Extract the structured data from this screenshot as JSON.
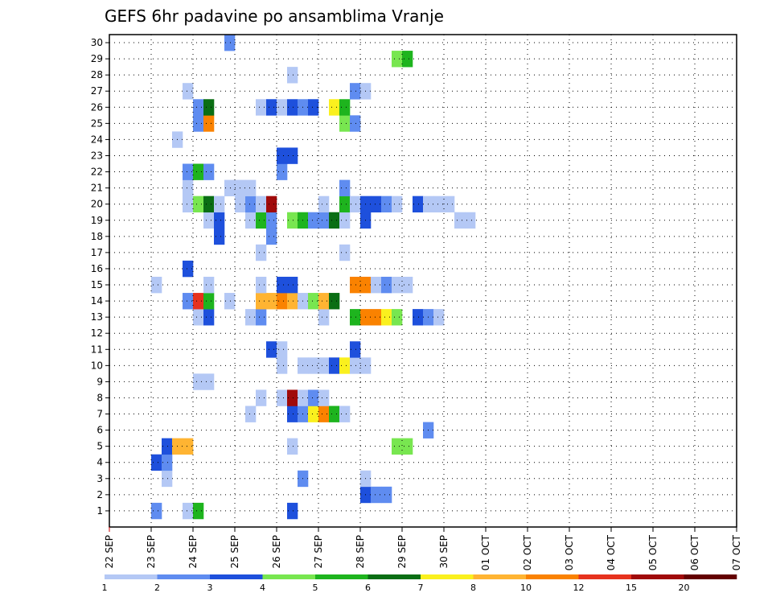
{
  "chart_data": {
    "type": "heatmap",
    "title": "GEFS 6hr padavine po ansamblima Vranje",
    "xlabel": "",
    "ylabel": "",
    "x_tick_labels": [
      "22 SEP",
      "23 SEP",
      "24 SEP",
      "25 SEP",
      "26 SEP",
      "27 SEP",
      "28 SEP",
      "29 SEP",
      "30 SEP",
      "01 OCT",
      "02 OCT",
      "03 OCT",
      "04 OCT",
      "05 OCT",
      "06 OCT",
      "07 OCT"
    ],
    "y_tick_labels": [
      "1",
      "2",
      "3",
      "4",
      "5",
      "6",
      "7",
      "8",
      "9",
      "10",
      "11",
      "12",
      "13",
      "14",
      "15",
      "16",
      "17",
      "18",
      "19",
      "20",
      "21",
      "22",
      "23",
      "24",
      "25",
      "26",
      "27",
      "28",
      "29",
      "30"
    ],
    "time_step_hours": 6,
    "grid": true,
    "legend_position": "bottom",
    "colorbar": {
      "labels": [
        "1",
        "2",
        "3",
        "4",
        "5",
        "6",
        "7",
        "8",
        "10",
        "12",
        "15",
        "20"
      ],
      "colors": [
        "#b4c8f5",
        "#5f8cf0",
        "#1e50dc",
        "#78e650",
        "#1eb41e",
        "#0a6e14",
        "#faf01e",
        "#ffb432",
        "#fa8200",
        "#e6321e",
        "#a00a0a",
        "#640000"
      ]
    },
    "cells": [
      [
        1,
        4,
        2
      ],
      [
        1,
        7,
        1
      ],
      [
        1,
        8,
        5
      ],
      [
        1,
        17,
        3
      ],
      [
        2,
        24,
        3
      ],
      [
        2,
        25,
        2
      ],
      [
        2,
        26,
        2
      ],
      [
        3,
        5,
        1
      ],
      [
        3,
        18,
        2
      ],
      [
        3,
        24,
        1
      ],
      [
        4,
        4,
        3
      ],
      [
        4,
        5,
        2
      ],
      [
        5,
        5,
        3
      ],
      [
        5,
        6,
        8
      ],
      [
        5,
        7,
        8
      ],
      [
        5,
        17,
        1
      ],
      [
        5,
        27,
        4
      ],
      [
        5,
        28,
        4
      ],
      [
        6,
        30,
        2
      ],
      [
        7,
        13,
        1
      ],
      [
        7,
        17,
        3
      ],
      [
        7,
        18,
        2
      ],
      [
        7,
        19,
        7
      ],
      [
        7,
        20,
        9
      ],
      [
        7,
        21,
        5
      ],
      [
        7,
        22,
        1
      ],
      [
        8,
        14,
        1
      ],
      [
        8,
        16,
        1
      ],
      [
        8,
        17,
        11
      ],
      [
        8,
        18,
        1
      ],
      [
        8,
        19,
        2
      ],
      [
        8,
        20,
        1
      ],
      [
        9,
        8,
        1
      ],
      [
        9,
        9,
        1
      ],
      [
        10,
        16,
        1
      ],
      [
        10,
        18,
        1
      ],
      [
        10,
        19,
        1
      ],
      [
        10,
        20,
        1
      ],
      [
        10,
        21,
        3
      ],
      [
        10,
        22,
        7
      ],
      [
        10,
        23,
        1
      ],
      [
        10,
        24,
        1
      ],
      [
        11,
        15,
        3
      ],
      [
        11,
        16,
        1
      ],
      [
        11,
        23,
        3
      ],
      [
        13,
        8,
        1
      ],
      [
        13,
        9,
        3
      ],
      [
        13,
        13,
        1
      ],
      [
        13,
        14,
        2
      ],
      [
        13,
        20,
        1
      ],
      [
        13,
        23,
        5
      ],
      [
        13,
        24,
        9
      ],
      [
        13,
        25,
        9
      ],
      [
        13,
        26,
        7
      ],
      [
        13,
        27,
        4
      ],
      [
        13,
        29,
        3
      ],
      [
        13,
        30,
        2
      ],
      [
        13,
        31,
        1
      ],
      [
        14,
        7,
        2
      ],
      [
        14,
        8,
        10
      ],
      [
        14,
        9,
        5
      ],
      [
        14,
        11,
        1
      ],
      [
        14,
        14,
        8
      ],
      [
        14,
        15,
        8
      ],
      [
        14,
        16,
        9
      ],
      [
        14,
        17,
        8
      ],
      [
        14,
        18,
        1
      ],
      [
        14,
        19,
        4
      ],
      [
        14,
        20,
        8
      ],
      [
        14,
        21,
        6
      ],
      [
        15,
        4,
        1
      ],
      [
        15,
        9,
        1
      ],
      [
        15,
        14,
        1
      ],
      [
        15,
        16,
        3
      ],
      [
        15,
        17,
        3
      ],
      [
        15,
        23,
        9
      ],
      [
        15,
        24,
        9
      ],
      [
        15,
        25,
        1
      ],
      [
        15,
        26,
        2
      ],
      [
        15,
        27,
        1
      ],
      [
        15,
        28,
        1
      ],
      [
        16,
        7,
        3
      ],
      [
        17,
        14,
        1
      ],
      [
        17,
        22,
        1
      ],
      [
        18,
        10,
        3
      ],
      [
        18,
        15,
        2
      ],
      [
        19,
        9,
        1
      ],
      [
        19,
        10,
        3
      ],
      [
        19,
        13,
        1
      ],
      [
        19,
        14,
        5
      ],
      [
        19,
        15,
        2
      ],
      [
        19,
        17,
        4
      ],
      [
        19,
        18,
        5
      ],
      [
        19,
        19,
        2
      ],
      [
        19,
        20,
        2
      ],
      [
        19,
        21,
        6
      ],
      [
        19,
        22,
        1
      ],
      [
        19,
        24,
        3
      ],
      [
        19,
        33,
        1
      ],
      [
        19,
        34,
        1
      ],
      [
        20,
        7,
        1
      ],
      [
        20,
        8,
        4
      ],
      [
        20,
        9,
        6
      ],
      [
        20,
        10,
        1
      ],
      [
        20,
        12,
        1
      ],
      [
        20,
        13,
        2
      ],
      [
        20,
        14,
        1
      ],
      [
        20,
        15,
        11
      ],
      [
        20,
        20,
        1
      ],
      [
        20,
        22,
        5
      ],
      [
        20,
        23,
        1
      ],
      [
        20,
        24,
        3
      ],
      [
        20,
        25,
        3
      ],
      [
        20,
        26,
        2
      ],
      [
        20,
        27,
        1
      ],
      [
        20,
        29,
        3
      ],
      [
        20,
        30,
        1
      ],
      [
        20,
        31,
        1
      ],
      [
        20,
        32,
        1
      ],
      [
        21,
        7,
        1
      ],
      [
        21,
        11,
        1
      ],
      [
        21,
        12,
        1
      ],
      [
        21,
        13,
        1
      ],
      [
        21,
        22,
        2
      ],
      [
        22,
        7,
        2
      ],
      [
        22,
        8,
        5
      ],
      [
        22,
        9,
        2
      ],
      [
        22,
        16,
        2
      ],
      [
        23,
        16,
        3
      ],
      [
        23,
        17,
        3
      ],
      [
        24,
        6,
        1
      ],
      [
        25,
        8,
        2
      ],
      [
        25,
        9,
        9
      ],
      [
        25,
        22,
        4
      ],
      [
        25,
        23,
        2
      ],
      [
        26,
        8,
        2
      ],
      [
        26,
        9,
        6
      ],
      [
        26,
        14,
        1
      ],
      [
        26,
        15,
        3
      ],
      [
        26,
        16,
        1
      ],
      [
        26,
        17,
        3
      ],
      [
        26,
        18,
        2
      ],
      [
        26,
        19,
        3
      ],
      [
        26,
        21,
        7
      ],
      [
        26,
        22,
        5
      ],
      [
        27,
        7,
        1
      ],
      [
        27,
        23,
        2
      ],
      [
        27,
        24,
        1
      ],
      [
        28,
        17,
        1
      ],
      [
        29,
        27,
        4
      ],
      [
        29,
        28,
        5
      ],
      [
        30,
        11,
        2
      ]
    ]
  }
}
